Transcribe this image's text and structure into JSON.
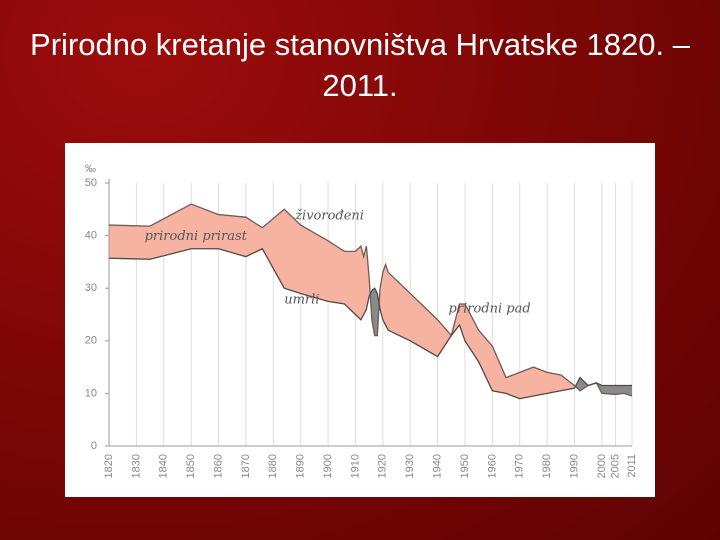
{
  "title": "Prirodno kretanje stanovništva Hrvatske 1820. – 2011.",
  "chart_data": {
    "type": "line",
    "y_label": "‰",
    "x": [
      1820,
      1835,
      1850,
      1860,
      1870,
      1876,
      1884,
      1890,
      1900,
      1906,
      1910,
      1912,
      1913,
      1914,
      1915,
      1916,
      1917,
      1918,
      1919,
      1920,
      1921,
      1922,
      1930,
      1940,
      1945,
      1948,
      1950,
      1955,
      1960,
      1965,
      1970,
      1975,
      1980,
      1985,
      1990,
      1992,
      1995,
      1998,
      2000,
      2005,
      2008,
      2011
    ],
    "series": [
      {
        "name": "živorođeni",
        "color": "#6e5c57",
        "values": [
          42,
          41.8,
          46,
          44,
          43.5,
          41.5,
          45,
          42,
          39,
          37,
          37,
          38,
          36,
          38,
          32,
          24,
          21,
          21,
          30,
          33,
          34.5,
          33,
          29,
          24,
          21,
          27,
          27,
          22,
          19,
          13,
          14,
          15,
          14,
          13.5,
          11.5,
          10.5,
          11.5,
          12,
          10,
          9.8,
          10,
          9.5
        ]
      },
      {
        "name": "umrli",
        "color": "#4f4a48",
        "values": [
          35.7,
          35.5,
          37.5,
          37.5,
          36,
          37.5,
          30,
          29,
          27.5,
          27,
          25,
          24,
          25,
          26,
          28.5,
          29.5,
          30,
          29,
          26,
          24,
          23,
          22,
          20,
          17,
          21,
          23,
          20,
          16,
          10.5,
          10,
          9,
          9.5,
          10,
          10.5,
          11,
          13,
          11.5,
          12,
          11.5,
          11.5,
          11.5,
          11.5
        ]
      }
    ],
    "annotations": [
      "prirodni prirast",
      "prirodni pad"
    ],
    "xlim": [
      1820,
      2011
    ],
    "xticks": [
      1820,
      1830,
      1840,
      1850,
      1860,
      1870,
      1880,
      1890,
      1900,
      1910,
      1920,
      1930,
      1940,
      1950,
      1960,
      1970,
      1980,
      1990,
      2000,
      2005,
      2011
    ],
    "ylim": [
      0,
      50
    ],
    "yticks": [
      0,
      10,
      20,
      30,
      40,
      50
    ],
    "grid": true,
    "fill_positive": "#f7b3a1",
    "fill_negative": "#8a8a8a"
  }
}
